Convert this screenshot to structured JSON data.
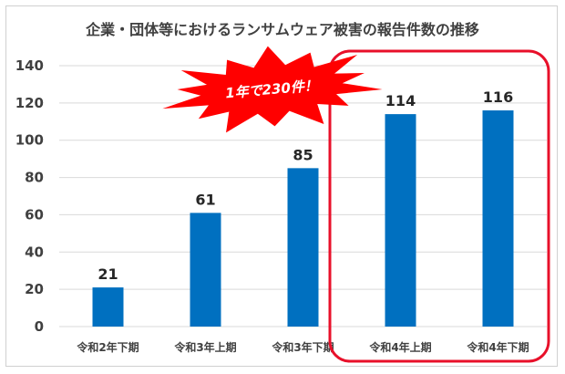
{
  "chart_data": {
    "type": "bar",
    "title": "企業・団体等におけるランサムウェア被害の報告件数の推移",
    "categories": [
      "令和2年下期",
      "令和3年上期",
      "令和3年下期",
      "令和4年上期",
      "令和4年下期"
    ],
    "values": [
      21,
      61,
      85,
      114,
      116
    ],
    "ylim": [
      0,
      140
    ],
    "yticks": [
      0,
      20,
      40,
      60,
      80,
      100,
      120,
      140
    ],
    "xlabel": "",
    "ylabel": "",
    "grid": true,
    "legend": "none",
    "bar_color": "#0070c0",
    "annotations": {
      "callout": "1年で230件！",
      "callout_color": "#ff0000",
      "highlight_color": "#e8102a"
    }
  }
}
